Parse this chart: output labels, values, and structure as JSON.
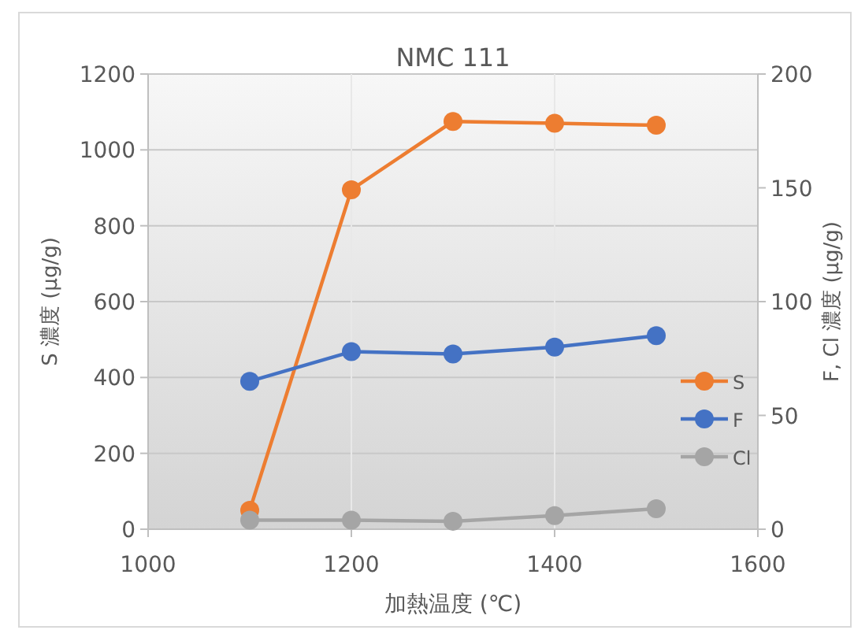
{
  "chart_data": {
    "type": "line",
    "title": "NMC 111",
    "xlabel": "加熱温度 (℃)",
    "ylabel": "S 濃度 (μg/g)",
    "y2label": "F, Cl 濃度 (μg/g)",
    "x": [
      1100,
      1200,
      1300,
      1400,
      1500
    ],
    "series": [
      {
        "name": "S",
        "color": "#ed7d31",
        "values": [
          50,
          895,
          1075,
          1070,
          1065
        ]
      },
      {
        "name": "F",
        "color": "#4472c4",
        "axis": "y2",
        "values": [
          65,
          78,
          77,
          80,
          85
        ]
      },
      {
        "name": "Cl",
        "color": "#a5a5a5",
        "axis": "y2",
        "values": [
          4,
          4,
          3.5,
          6,
          9
        ]
      }
    ],
    "xlim": [
      1000,
      1600
    ],
    "xticks": [
      1000,
      1200,
      1400,
      1600
    ],
    "ylim": [
      0,
      1200
    ],
    "yticks": [
      0,
      200,
      400,
      600,
      800,
      1000,
      1200
    ],
    "y2lim": [
      0,
      200
    ],
    "y2ticks": [
      0,
      50,
      100,
      150,
      200
    ],
    "grid": true,
    "legend": "right",
    "marker": "circle",
    "line_style": "solid"
  }
}
